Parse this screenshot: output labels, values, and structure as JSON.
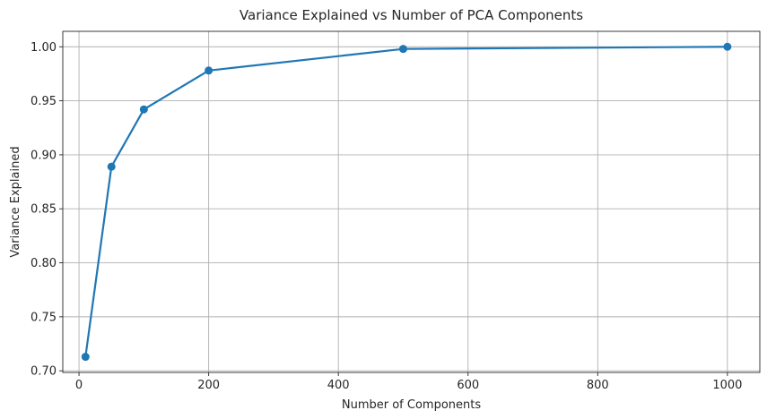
{
  "chart_data": {
    "type": "line",
    "title": "Variance Explained vs Number of PCA Components",
    "xlabel": "Number of Components",
    "ylabel": "Variance Explained",
    "xlim": [
      -25,
      1050
    ],
    "ylim": [
      0.6985,
      1.0143
    ],
    "xticks": [
      0,
      200,
      400,
      600,
      800,
      1000
    ],
    "xtick_labels": [
      "0",
      "200",
      "400",
      "600",
      "800",
      "1000"
    ],
    "yticks": [
      0.7,
      0.75,
      0.8,
      0.85,
      0.9,
      0.95,
      1.0
    ],
    "ytick_labels": [
      "0.70",
      "0.75",
      "0.80",
      "0.85",
      "0.90",
      "0.95",
      "1.00"
    ],
    "grid": true,
    "series": [
      {
        "color": "#1f77b4",
        "marker": "circle",
        "x": [
          10,
          50,
          100,
          200,
          500,
          1000
        ],
        "y": [
          0.713,
          0.889,
          0.942,
          0.978,
          0.998,
          1.0
        ]
      }
    ]
  }
}
